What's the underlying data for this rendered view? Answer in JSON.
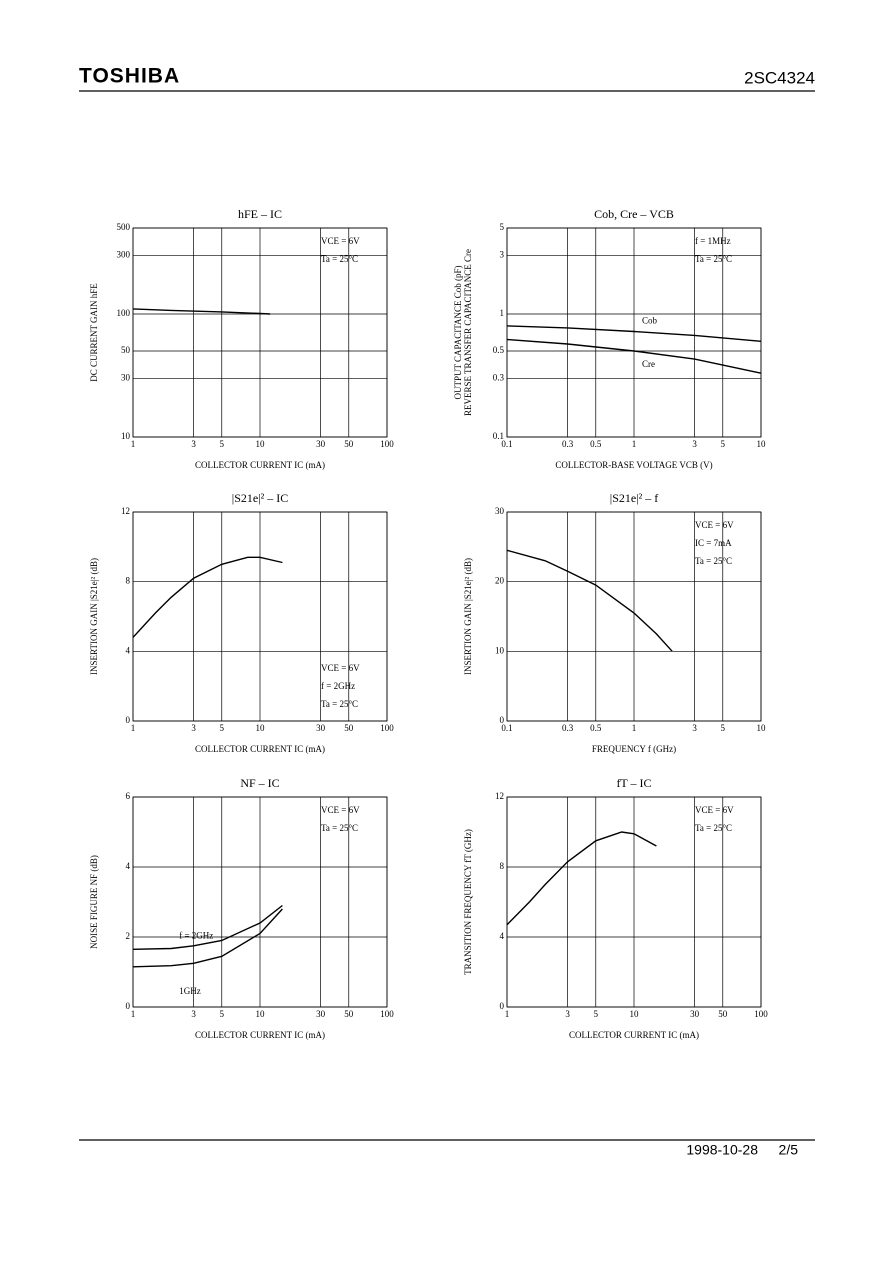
{
  "header": {
    "brand": "TOSHIBA",
    "part": "2SC4324"
  },
  "footer": {
    "date": "1998-10-28",
    "page": "2/5"
  },
  "chart_data": [
    {
      "type": "line",
      "title": "hFE – IC",
      "xlabel": "COLLECTOR CURRENT IC (mA)",
      "ylabel": [
        "DC CURRENT GAIN hFE"
      ],
      "xscale": "log",
      "yscale": "log",
      "xlim": [
        1,
        100
      ],
      "ylim": [
        10,
        500
      ],
      "xticks": [
        1,
        3,
        5,
        10,
        30,
        50,
        100
      ],
      "yticks": [
        10,
        30,
        50,
        100,
        300,
        500
      ],
      "grid": true,
      "annotations": [
        "VCE = 6V",
        "Ta = 25°C"
      ],
      "series": [
        {
          "color": "#000000",
          "x": [
            1,
            2,
            5,
            10,
            12
          ],
          "values": [
            110,
            107,
            104,
            101,
            100
          ]
        }
      ]
    },
    {
      "type": "line",
      "title": "Cob, Cre – VCB",
      "xlabel": "COLLECTOR-BASE VOLTAGE VCB (V)",
      "ylabel": [
        "OUTPUT CAPACITANCE Cob (pF)",
        "REVERSE TRANSFER CAPACITANCE Cre"
      ],
      "xscale": "log",
      "yscale": "log",
      "xlim": [
        0.1,
        10
      ],
      "ylim": [
        0.1,
        5
      ],
      "xticks": [
        0.1,
        0.3,
        0.5,
        1,
        3,
        5,
        10
      ],
      "yticks": [
        0.1,
        0.3,
        0.5,
        1,
        3,
        5
      ],
      "grid": true,
      "annotations": [
        "f = 1MHz",
        "Ta = 25°C"
      ],
      "series": [
        {
          "name": "Cob",
          "color": "#000000",
          "x": [
            0.1,
            0.3,
            1,
            3,
            10
          ],
          "values": [
            0.8,
            0.77,
            0.72,
            0.67,
            0.6
          ]
        },
        {
          "name": "Cre",
          "color": "#000000",
          "x": [
            0.1,
            0.3,
            1,
            3,
            10
          ],
          "values": [
            0.62,
            0.57,
            0.5,
            0.43,
            0.33
          ]
        }
      ]
    },
    {
      "type": "line",
      "title": "|S21e|² – IC",
      "xlabel": "COLLECTOR CURRENT IC (mA)",
      "ylabel": [
        "INSERTION GAIN |S21e|² (dB)"
      ],
      "xscale": "log",
      "yscale": "linear",
      "xlim": [
        1,
        100
      ],
      "ylim": [
        0,
        12
      ],
      "xticks": [
        1,
        3,
        5,
        10,
        30,
        50,
        100
      ],
      "yticks": [
        0,
        4,
        8,
        12
      ],
      "grid": true,
      "annotations": [
        "VCE = 6V",
        "f = 2GHz",
        "Ta = 25°C"
      ],
      "series": [
        {
          "color": "#000000",
          "x": [
            1,
            1.5,
            2,
            3,
            5,
            8,
            10,
            15
          ],
          "values": [
            4.8,
            6.2,
            7.1,
            8.2,
            9.0,
            9.4,
            9.4,
            9.1
          ]
        }
      ]
    },
    {
      "type": "line",
      "title": "|S21e|² – f",
      "xlabel": "FREQUENCY f (GHz)",
      "ylabel": [
        "INSERTION GAIN |S21e|² (dB)"
      ],
      "xscale": "log",
      "yscale": "linear",
      "xlim": [
        0.1,
        10
      ],
      "ylim": [
        0,
        30
      ],
      "xticks": [
        0.1,
        0.3,
        0.5,
        1,
        3,
        5,
        10
      ],
      "yticks": [
        0,
        10,
        20,
        30
      ],
      "grid": true,
      "annotations": [
        "VCE = 6V",
        "IC = 7mA",
        "Ta = 25°C"
      ],
      "series": [
        {
          "color": "#000000",
          "x": [
            0.1,
            0.2,
            0.3,
            0.5,
            1,
            1.5,
            2
          ],
          "values": [
            24.5,
            23,
            21.5,
            19.5,
            15.5,
            12.5,
            10
          ]
        }
      ]
    },
    {
      "type": "line",
      "title": "NF – IC",
      "xlabel": "COLLECTOR CURRENT IC (mA)",
      "ylabel": [
        "NOISE FIGURE NF (dB)"
      ],
      "xscale": "log",
      "yscale": "linear",
      "xlim": [
        1,
        100
      ],
      "ylim": [
        0,
        6
      ],
      "xticks": [
        1,
        3,
        5,
        10,
        30,
        50,
        100
      ],
      "yticks": [
        0,
        2,
        4,
        6
      ],
      "grid": true,
      "annotations": [
        "VCE = 6V",
        "Ta = 25°C"
      ],
      "series": [
        {
          "name": "f = 2GHz",
          "color": "#000000",
          "x": [
            1,
            2,
            3,
            5,
            10,
            15
          ],
          "values": [
            1.65,
            1.67,
            1.75,
            1.9,
            2.4,
            2.9
          ]
        },
        {
          "name": "1GHz",
          "color": "#000000",
          "x": [
            1,
            2,
            3,
            5,
            10,
            15
          ],
          "values": [
            1.15,
            1.18,
            1.25,
            1.45,
            2.1,
            2.8
          ]
        }
      ]
    },
    {
      "type": "line",
      "title": "fT – IC",
      "xlabel": "COLLECTOR CURRENT IC (mA)",
      "ylabel": [
        "TRANSITION FREQUENCY fT (GHz)"
      ],
      "xscale": "log",
      "yscale": "linear",
      "xlim": [
        1,
        100
      ],
      "ylim": [
        0,
        12
      ],
      "xticks": [
        1,
        3,
        5,
        10,
        30,
        50,
        100
      ],
      "yticks": [
        0,
        4,
        8,
        12
      ],
      "grid": true,
      "annotations": [
        "VCE = 6V",
        "Ta = 25°C"
      ],
      "series": [
        {
          "color": "#000000",
          "x": [
            1,
            1.5,
            2,
            3,
            5,
            8,
            10,
            15
          ],
          "values": [
            4.7,
            6.0,
            7.0,
            8.3,
            9.5,
            10,
            9.9,
            9.2
          ]
        }
      ]
    }
  ]
}
